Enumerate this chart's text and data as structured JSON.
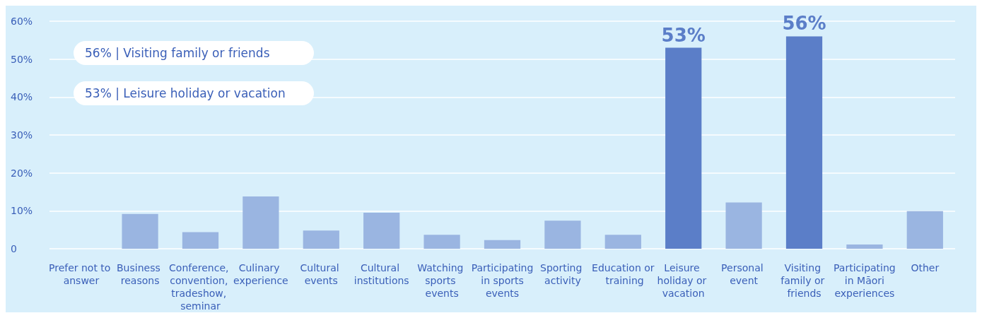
{
  "chart_data": {
    "type": "bar",
    "categories": [
      "Prefer not to answer",
      "Business reasons",
      "Conference, convention, tradeshow, seminar",
      "Culinary experience",
      "Cultural events",
      "Cultural institutions",
      "Watching sports events",
      "Participating in sports events",
      "Sporting activity",
      "Education or training",
      "Leisure holiday or vacation",
      "Personal event",
      "Visiting family or friends",
      "Participating in Māori experiences",
      "Other"
    ],
    "values": [
      0,
      9.2,
      4.4,
      13.8,
      4.8,
      9.5,
      3.7,
      2.3,
      7.4,
      3.7,
      53,
      12.2,
      56,
      1.1,
      9.9
    ],
    "colors": [
      "#9ab5e1",
      "#9ab5e1",
      "#9ab5e1",
      "#9ab5e1",
      "#9ab5e1",
      "#9ab5e1",
      "#9ab5e1",
      "#9ab5e1",
      "#9ab5e1",
      "#9ab5e1",
      "#5b7ec8",
      "#9ab5e1",
      "#5b7ec8",
      "#9ab5e1",
      "#9ab5e1"
    ],
    "value_labels": [
      null,
      null,
      null,
      null,
      null,
      null,
      null,
      null,
      null,
      null,
      "53%",
      null,
      "56%",
      null,
      null
    ],
    "ylim": [
      0,
      60
    ],
    "yticks": [
      {
        "value": 0,
        "label": "0"
      },
      {
        "value": 10,
        "label": "10%"
      },
      {
        "value": 20,
        "label": "20%"
      },
      {
        "value": 30,
        "label": "30%"
      },
      {
        "value": 40,
        "label": "40%"
      },
      {
        "value": 50,
        "label": "50%"
      },
      {
        "value": 60,
        "label": "60%"
      }
    ],
    "grid": "y",
    "annotations": [
      "56% | Visiting family or friends",
      "53% | Leisure holiday or vacation"
    ]
  }
}
